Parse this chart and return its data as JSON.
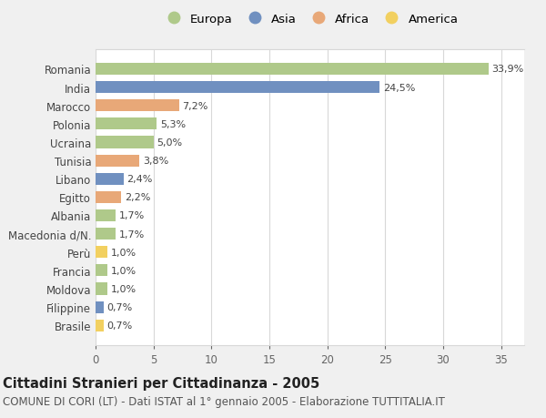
{
  "categories": [
    "Romania",
    "India",
    "Marocco",
    "Polonia",
    "Ucraina",
    "Tunisia",
    "Libano",
    "Egitto",
    "Albania",
    "Macedonia d/N.",
    "Perù",
    "Francia",
    "Moldova",
    "Filippine",
    "Brasile"
  ],
  "values": [
    33.9,
    24.5,
    7.2,
    5.3,
    5.0,
    3.8,
    2.4,
    2.2,
    1.7,
    1.7,
    1.0,
    1.0,
    1.0,
    0.7,
    0.7
  ],
  "labels": [
    "33,9%",
    "24,5%",
    "7,2%",
    "5,3%",
    "5,0%",
    "3,8%",
    "2,4%",
    "2,2%",
    "1,7%",
    "1,7%",
    "1,0%",
    "1,0%",
    "1,0%",
    "0,7%",
    "0,7%"
  ],
  "continents": [
    "Europa",
    "Asia",
    "Africa",
    "Europa",
    "Europa",
    "Africa",
    "Asia",
    "Africa",
    "Europa",
    "Europa",
    "America",
    "Europa",
    "Europa",
    "Asia",
    "America"
  ],
  "continent_colors": {
    "Europa": "#afc98a",
    "Asia": "#7090c0",
    "Africa": "#e8a878",
    "America": "#f2d060"
  },
  "legend_order": [
    "Europa",
    "Asia",
    "Africa",
    "America"
  ],
  "title": "Cittadini Stranieri per Cittadinanza - 2005",
  "subtitle": "COMUNE DI CORI (LT) - Dati ISTAT al 1° gennaio 2005 - Elaborazione TUTTITALIA.IT",
  "xlim": [
    0,
    37
  ],
  "xticks": [
    0,
    5,
    10,
    15,
    20,
    25,
    30,
    35
  ],
  "background_color": "#f0f0f0",
  "plot_bg_color": "#ffffff",
  "grid_color": "#d8d8d8",
  "bar_height": 0.65,
  "title_fontsize": 10.5,
  "subtitle_fontsize": 8.5,
  "label_fontsize": 8,
  "tick_fontsize": 8.5,
  "legend_fontsize": 9.5
}
